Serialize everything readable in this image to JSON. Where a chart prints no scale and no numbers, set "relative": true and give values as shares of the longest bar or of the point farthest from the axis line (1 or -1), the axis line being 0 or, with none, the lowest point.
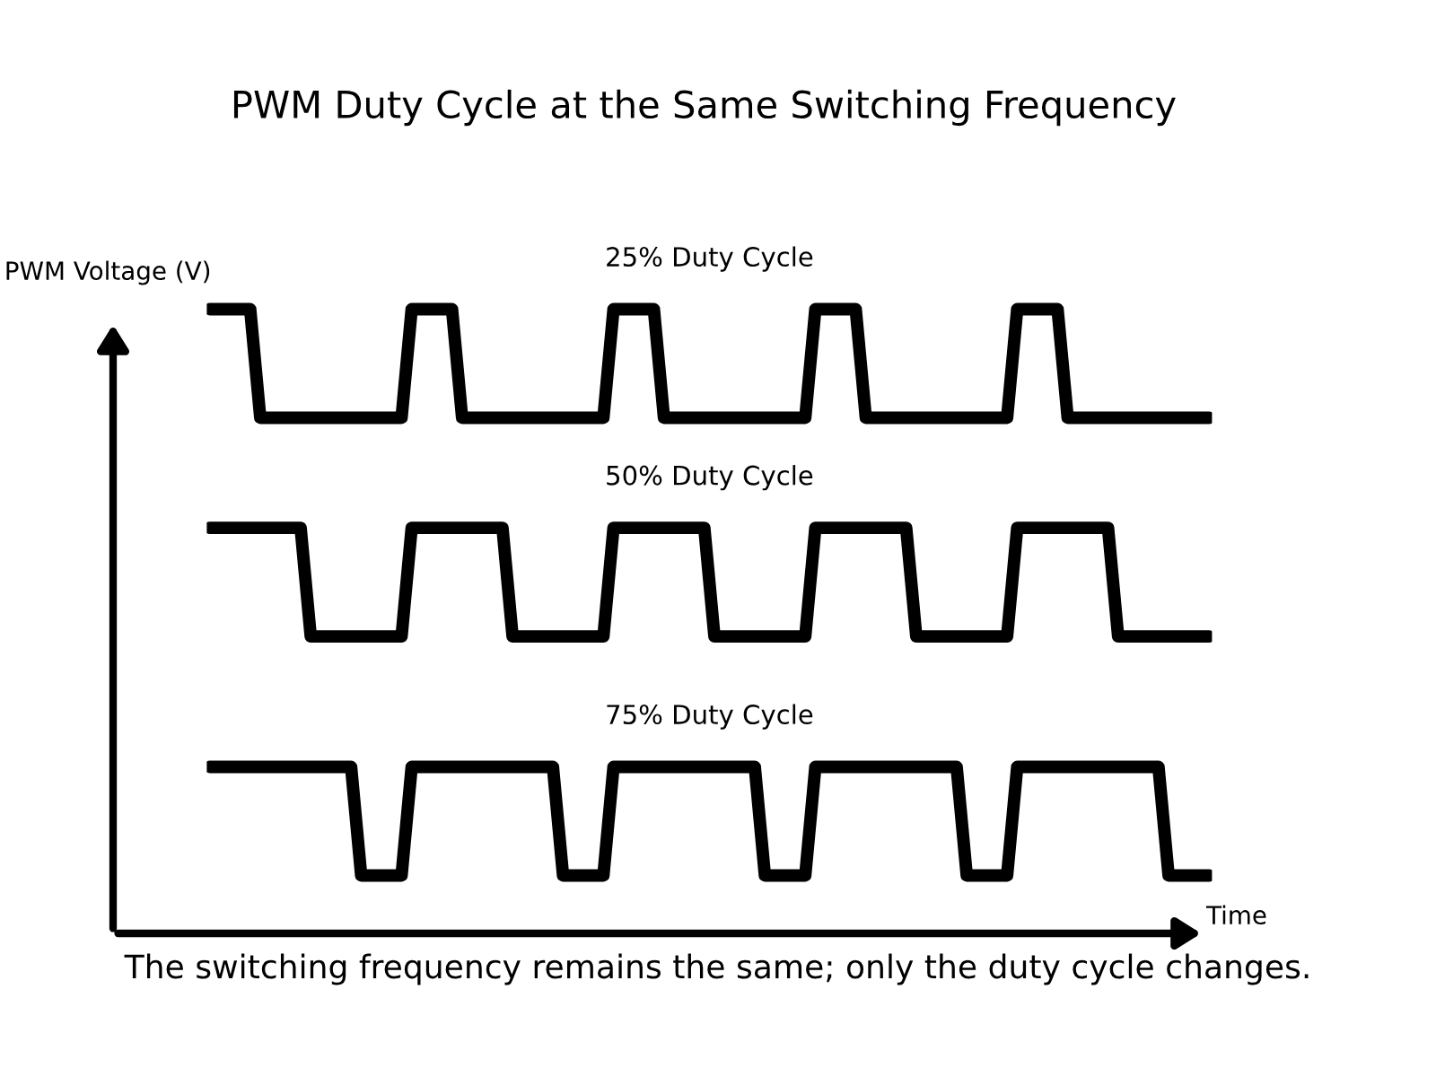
{
  "chart_data": [
    {
      "type": "line",
      "title": "PWM Duty Cycle at the Same Switching Frequency",
      "subtitle": "25% Duty Cycle",
      "ylabel": "PWM Voltage (V)",
      "relative": true,
      "tick_labels": false,
      "categories": [
        null,
        null,
        null,
        null,
        null,
        null,
        null,
        null,
        null,
        null,
        null,
        null,
        null,
        null,
        null,
        null,
        null,
        null,
        null,
        null,
        null,
        null,
        null,
        null,
        null,
        null,
        null,
        null,
        null,
        null,
        null,
        null,
        null,
        null,
        null,
        null,
        null,
        null,
        null,
        null,
        null,
        null,
        null,
        null,
        null,
        null,
        null,
        null,
        null,
        null,
        null,
        null,
        null,
        null,
        null,
        null,
        null,
        null,
        null,
        null,
        null,
        null,
        null,
        null,
        null,
        null,
        null,
        null,
        null,
        null,
        null,
        null,
        null,
        null,
        null,
        null,
        null,
        null,
        null,
        null,
        null,
        null,
        null,
        null,
        null,
        null,
        null,
        null,
        null,
        null,
        null,
        null,
        null,
        null,
        null,
        null,
        null,
        null,
        null,
        null
      ],
      "series": [
        {
          "color": "#000000",
          "values": [
            1,
            1,
            1,
            1,
            1,
            0,
            0,
            0,
            0,
            0,
            0,
            0,
            0,
            0,
            0,
            0,
            0,
            0,
            0,
            0,
            1,
            1,
            1,
            1,
            1,
            0,
            0,
            0,
            0,
            0,
            0,
            0,
            0,
            0,
            0,
            0,
            0,
            0,
            0,
            0,
            1,
            1,
            1,
            1,
            1,
            0,
            0,
            0,
            0,
            0,
            0,
            0,
            0,
            0,
            0,
            0,
            0,
            0,
            0,
            0,
            1,
            1,
            1,
            1,
            1,
            0,
            0,
            0,
            0,
            0,
            0,
            0,
            0,
            0,
            0,
            0,
            0,
            0,
            0,
            0,
            1,
            1,
            1,
            1,
            1,
            0,
            0,
            0,
            0,
            0,
            0,
            0,
            0,
            0,
            0,
            0,
            0,
            0,
            0,
            0
          ]
        }
      ]
    },
    {
      "type": "line",
      "subtitle": "50% Duty Cycle",
      "relative": true,
      "tick_labels": false,
      "categories": [
        null,
        null,
        null,
        null,
        null,
        null,
        null,
        null,
        null,
        null,
        null,
        null,
        null,
        null,
        null,
        null,
        null,
        null,
        null,
        null,
        null,
        null,
        null,
        null,
        null,
        null,
        null,
        null,
        null,
        null,
        null,
        null,
        null,
        null,
        null,
        null,
        null,
        null,
        null,
        null,
        null,
        null,
        null,
        null,
        null,
        null,
        null,
        null,
        null,
        null,
        null,
        null,
        null,
        null,
        null,
        null,
        null,
        null,
        null,
        null,
        null,
        null,
        null,
        null,
        null,
        null,
        null,
        null,
        null,
        null,
        null,
        null,
        null,
        null,
        null,
        null,
        null,
        null,
        null,
        null,
        null,
        null,
        null,
        null,
        null,
        null,
        null,
        null,
        null,
        null,
        null,
        null,
        null,
        null,
        null,
        null,
        null,
        null,
        null,
        null
      ],
      "series": [
        {
          "color": "#000000",
          "values": [
            1,
            1,
            1,
            1,
            1,
            1,
            1,
            1,
            1,
            1,
            0,
            0,
            0,
            0,
            0,
            0,
            0,
            0,
            0,
            0,
            1,
            1,
            1,
            1,
            1,
            1,
            1,
            1,
            1,
            1,
            0,
            0,
            0,
            0,
            0,
            0,
            0,
            0,
            0,
            0,
            1,
            1,
            1,
            1,
            1,
            1,
            1,
            1,
            1,
            1,
            0,
            0,
            0,
            0,
            0,
            0,
            0,
            0,
            0,
            0,
            1,
            1,
            1,
            1,
            1,
            1,
            1,
            1,
            1,
            1,
            0,
            0,
            0,
            0,
            0,
            0,
            0,
            0,
            0,
            0,
            1,
            1,
            1,
            1,
            1,
            1,
            1,
            1,
            1,
            1,
            0,
            0,
            0,
            0,
            0,
            0,
            0,
            0,
            0,
            0
          ]
        }
      ]
    },
    {
      "type": "line",
      "subtitle": "75% Duty Cycle",
      "xlabel": "Time",
      "relative": true,
      "tick_labels": false,
      "categories": [
        null,
        null,
        null,
        null,
        null,
        null,
        null,
        null,
        null,
        null,
        null,
        null,
        null,
        null,
        null,
        null,
        null,
        null,
        null,
        null,
        null,
        null,
        null,
        null,
        null,
        null,
        null,
        null,
        null,
        null,
        null,
        null,
        null,
        null,
        null,
        null,
        null,
        null,
        null,
        null,
        null,
        null,
        null,
        null,
        null,
        null,
        null,
        null,
        null,
        null,
        null,
        null,
        null,
        null,
        null,
        null,
        null,
        null,
        null,
        null,
        null,
        null,
        null,
        null,
        null,
        null,
        null,
        null,
        null,
        null,
        null,
        null,
        null,
        null,
        null,
        null,
        null,
        null,
        null,
        null,
        null,
        null,
        null,
        null,
        null,
        null,
        null,
        null,
        null,
        null,
        null,
        null,
        null,
        null,
        null,
        null,
        null,
        null,
        null,
        null
      ],
      "series": [
        {
          "color": "#000000",
          "values": [
            1,
            1,
            1,
            1,
            1,
            1,
            1,
            1,
            1,
            1,
            1,
            1,
            1,
            1,
            1,
            0,
            0,
            0,
            0,
            0,
            1,
            1,
            1,
            1,
            1,
            1,
            1,
            1,
            1,
            1,
            1,
            1,
            1,
            1,
            1,
            0,
            0,
            0,
            0,
            0,
            1,
            1,
            1,
            1,
            1,
            1,
            1,
            1,
            1,
            1,
            1,
            1,
            1,
            1,
            1,
            0,
            0,
            0,
            0,
            0,
            1,
            1,
            1,
            1,
            1,
            1,
            1,
            1,
            1,
            1,
            1,
            1,
            1,
            1,
            1,
            0,
            0,
            0,
            0,
            0,
            1,
            1,
            1,
            1,
            1,
            1,
            1,
            1,
            1,
            1,
            1,
            1,
            1,
            1,
            1,
            0,
            0,
            0,
            0,
            0
          ]
        }
      ],
      "annotations": [
        "The switching frequency remains the same; only the duty cycle changes."
      ]
    }
  ]
}
